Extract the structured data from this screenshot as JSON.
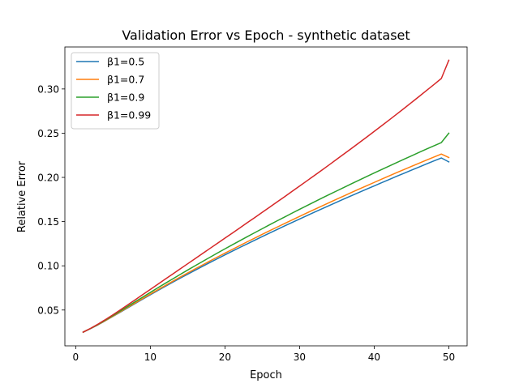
{
  "chart_data": {
    "type": "line",
    "title": "Validation Error vs Epoch - synthetic dataset",
    "xlabel": "Epoch",
    "ylabel": "Relative Error",
    "xlim": [
      -1.45,
      52.45
    ],
    "ylim": [
      0.0095,
      0.3475
    ],
    "xticks": [
      0,
      10,
      20,
      30,
      40,
      50
    ],
    "yticks": [
      0.05,
      0.1,
      0.15,
      0.2,
      0.25,
      0.3
    ],
    "xtick_labels": [
      "0",
      "10",
      "20",
      "30",
      "40",
      "50"
    ],
    "ytick_labels": [
      "0.05",
      "0.10",
      "0.15",
      "0.20",
      "0.25",
      "0.30"
    ],
    "grid": false,
    "legend_position": "upper-left",
    "x": [
      1,
      2,
      3,
      4,
      5,
      6,
      7,
      8,
      9,
      10,
      11,
      12,
      13,
      14,
      15,
      16,
      17,
      18,
      19,
      20,
      21,
      22,
      23,
      24,
      25,
      26,
      27,
      28,
      29,
      30,
      31,
      32,
      33,
      34,
      35,
      36,
      37,
      38,
      39,
      40,
      41,
      42,
      43,
      44,
      45,
      46,
      47,
      48,
      49,
      50
    ],
    "series": [
      {
        "name": "β1=0.5",
        "color": "#1f77b4",
        "values": [
          0.025,
          0.029,
          0.0333,
          0.038,
          0.0428,
          0.0477,
          0.0526,
          0.0575,
          0.0624,
          0.0672,
          0.072,
          0.0767,
          0.0814,
          0.086,
          0.0905,
          0.095,
          0.0994,
          0.1038,
          0.1081,
          0.1124,
          0.1166,
          0.1208,
          0.1249,
          0.129,
          0.1331,
          0.1371,
          0.1411,
          0.1451,
          0.149,
          0.1529,
          0.1568,
          0.1607,
          0.1645,
          0.1683,
          0.172,
          0.1758,
          0.1795,
          0.1831,
          0.1868,
          0.1904,
          0.194,
          0.1976,
          0.2012,
          0.2047,
          0.2082,
          0.2117,
          0.2152,
          0.2186,
          0.222,
          0.2175
        ]
      },
      {
        "name": "β1=0.7",
        "color": "#ff7f0e",
        "values": [
          0.025,
          0.0291,
          0.0335,
          0.0382,
          0.0431,
          0.0481,
          0.0531,
          0.0581,
          0.0631,
          0.068,
          0.0729,
          0.0777,
          0.0825,
          0.0872,
          0.0919,
          0.0965,
          0.101,
          0.1055,
          0.1099,
          0.1143,
          0.1186,
          0.1229,
          0.1272,
          0.1314,
          0.1356,
          0.1397,
          0.1438,
          0.1479,
          0.1519,
          0.1559,
          0.1599,
          0.1638,
          0.1677,
          0.1716,
          0.1755,
          0.1793,
          0.1831,
          0.1869,
          0.1906,
          0.1943,
          0.198,
          0.2017,
          0.2053,
          0.2089,
          0.2125,
          0.216,
          0.2195,
          0.223,
          0.2264,
          0.2225
        ]
      },
      {
        "name": "β1=0.9",
        "color": "#2ca02c",
        "values": [
          0.025,
          0.0292,
          0.0338,
          0.0387,
          0.0438,
          0.049,
          0.0542,
          0.0595,
          0.0647,
          0.0699,
          0.0751,
          0.0802,
          0.0852,
          0.0902,
          0.0952,
          0.1001,
          0.1049,
          0.1097,
          0.1145,
          0.1192,
          0.1238,
          0.1284,
          0.133,
          0.1375,
          0.142,
          0.1465,
          0.1509,
          0.1552,
          0.1596,
          0.1639,
          0.1681,
          0.1724,
          0.1766,
          0.1807,
          0.1848,
          0.1889,
          0.193,
          0.197,
          0.201,
          0.205,
          0.2089,
          0.2128,
          0.2167,
          0.2206,
          0.2244,
          0.2282,
          0.232,
          0.2357,
          0.2394,
          0.25
        ]
      },
      {
        "name": "β1=0.99",
        "color": "#d62728",
        "values": [
          0.025,
          0.0293,
          0.0341,
          0.0393,
          0.0447,
          0.0503,
          0.056,
          0.0617,
          0.0675,
          0.0733,
          0.0791,
          0.0849,
          0.0907,
          0.0965,
          0.1023,
          0.1081,
          0.1139,
          0.1197,
          0.1255,
          0.1313,
          0.1371,
          0.1429,
          0.1488,
          0.1546,
          0.1605,
          0.1664,
          0.1723,
          0.1782,
          0.1842,
          0.1902,
          0.1962,
          0.2022,
          0.2083,
          0.2144,
          0.2206,
          0.2268,
          0.233,
          0.2393,
          0.2456,
          0.252,
          0.2584,
          0.2649,
          0.2714,
          0.278,
          0.2847,
          0.2914,
          0.2982,
          0.305,
          0.3119,
          0.3325
        ]
      }
    ]
  }
}
